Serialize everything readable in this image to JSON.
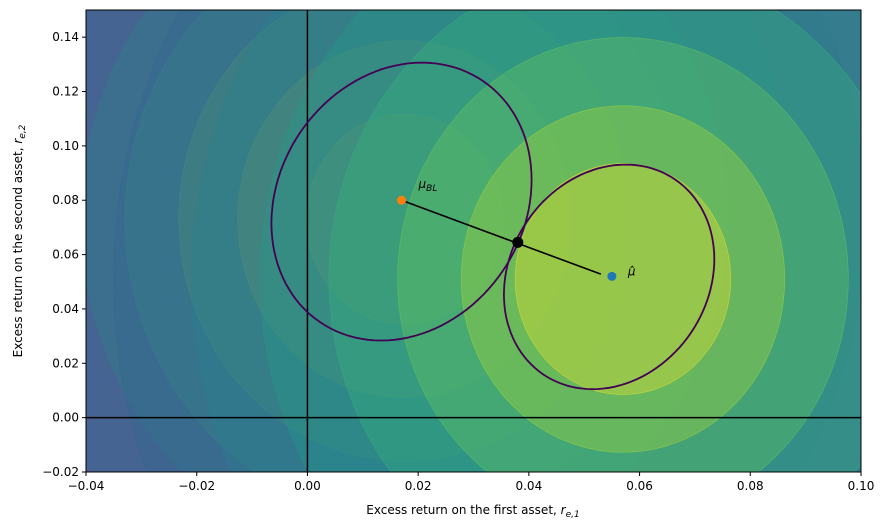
{
  "chart_data": {
    "type": "contour",
    "title": "",
    "xlabel": "Excess return on the first asset, ",
    "xlabel_math": "r",
    "xlabel_sub": "e,1",
    "ylabel": "Excess return on the second asset, ",
    "ylabel_math": "r",
    "ylabel_sub": "e,2",
    "xlim": [
      -0.04,
      0.1
    ],
    "ylim": [
      -0.02,
      0.15
    ],
    "xticks": [
      "−0.04",
      "−0.02",
      "0.00",
      "0.02",
      "0.04",
      "0.06",
      "0.08",
      "0.10"
    ],
    "xtick_values": [
      -0.04,
      -0.02,
      0,
      0.02,
      0.04,
      0.06,
      0.08,
      0.1
    ],
    "yticks": [
      "−0.02",
      "0.00",
      "0.02",
      "0.04",
      "0.06",
      "0.08",
      "0.10",
      "0.12",
      "0.14"
    ],
    "ytick_values": [
      -0.02,
      0,
      0.02,
      0.04,
      0.06,
      0.08,
      0.1,
      0.12,
      0.14
    ],
    "points": [
      {
        "name": "mu_BL",
        "label": "μ",
        "label_sub": "BL",
        "x": 0.017,
        "y": 0.08,
        "color": "#ff7f0e"
      },
      {
        "name": "mu_hat",
        "label": "μ̂",
        "x": 0.055,
        "y": 0.052,
        "color": "#1f77b4"
      },
      {
        "name": "tangency",
        "x": 0.038,
        "y": 0.0645,
        "color": "#000000"
      }
    ],
    "line": {
      "from": [
        0.017,
        0.08
      ],
      "to": [
        0.053,
        0.0528
      ],
      "color": "#000000"
    },
    "ellipses": [
      {
        "name": "bl-prior-ellipse",
        "center": [
          0.017,
          0.0795
        ],
        "u": [
          0.0235,
          0.008
        ],
        "v": [
          0,
          0.0505
        ],
        "color": "#440154"
      },
      {
        "name": "sample-ellipse",
        "center": [
          0.0545,
          0.0518
        ],
        "u": [
          0.019,
          0.0065
        ],
        "v": [
          0,
          0.0408
        ],
        "color": "#440154"
      }
    ],
    "contour_sets": [
      {
        "name": "bl-contours",
        "center": [
          0.0175,
          0.073
        ]
      },
      {
        "name": "sample-contours",
        "center": [
          0.057,
          0.051
        ]
      }
    ],
    "axhline": 0,
    "axvline": 0
  }
}
